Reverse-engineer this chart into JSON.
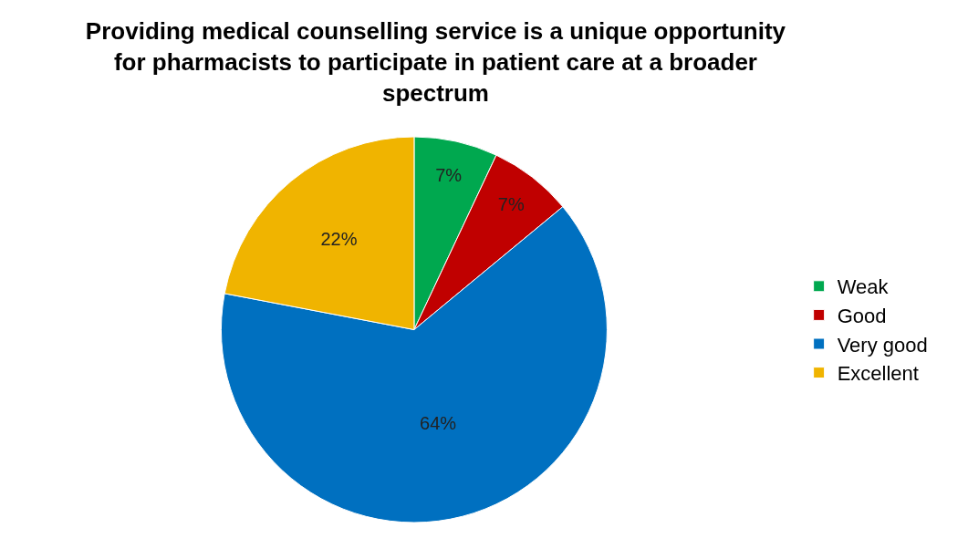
{
  "chart_data": {
    "type": "pie",
    "title": "Providing medical counselling service is a unique opportunity for pharmacists to participate in patient care at a broader spectrum",
    "categories": [
      "Weak",
      "Good",
      "Very good",
      "Excellent"
    ],
    "values": [
      7,
      7,
      64,
      22
    ],
    "value_labels": [
      "7%",
      "7%",
      "64%",
      "22%"
    ],
    "colors": [
      "#00a84f",
      "#c00000",
      "#0070c0",
      "#f0b400"
    ],
    "legend": "right"
  }
}
